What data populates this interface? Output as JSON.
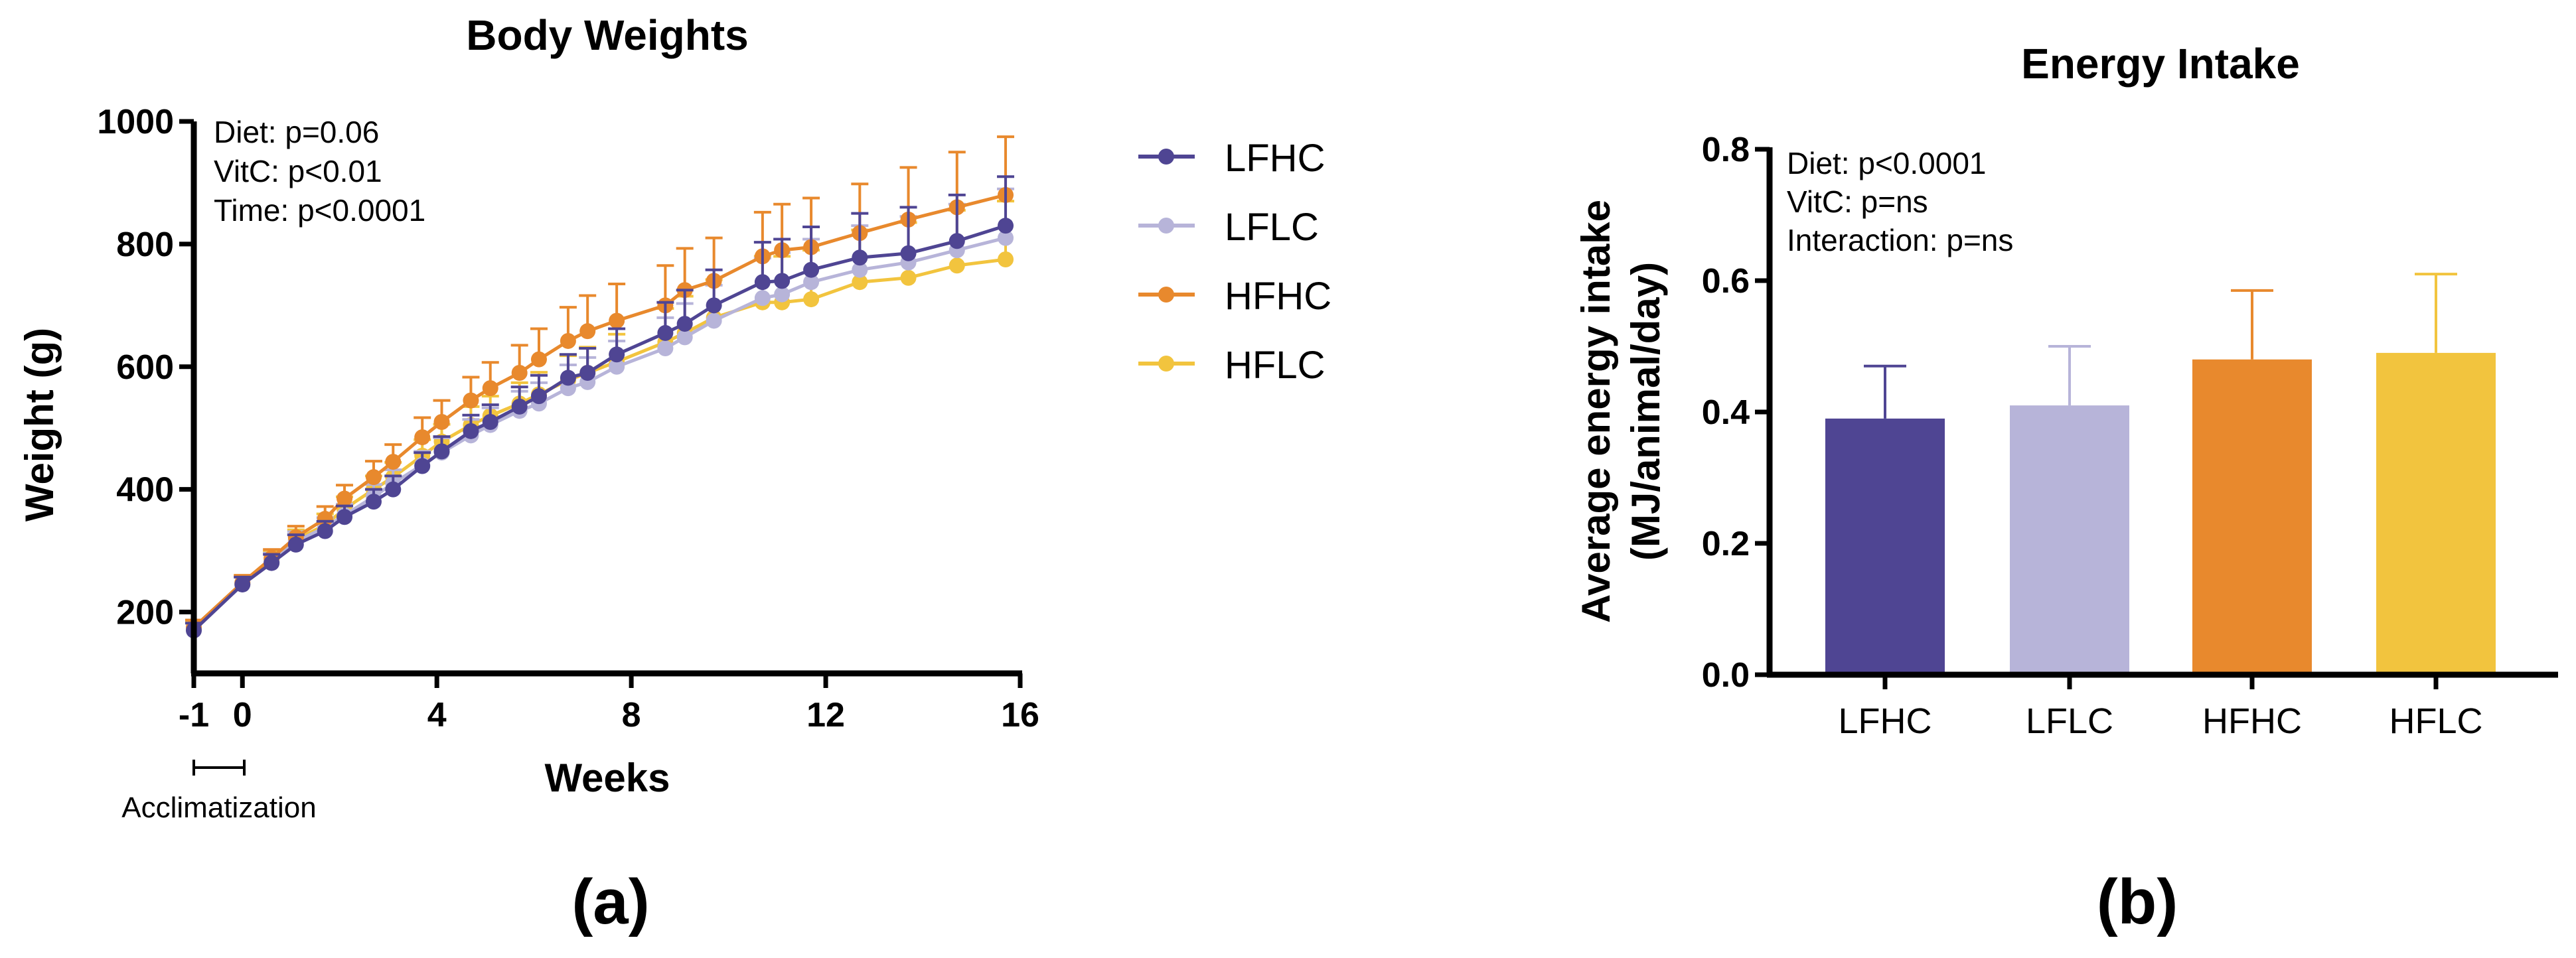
{
  "panel_a": {
    "label": "(a)",
    "acclimatization_label": "Acclimatization"
  },
  "panel_b": {
    "label": "(b)"
  },
  "colors": {
    "LFHC": "#4f4593",
    "LFLC": "#b7b4d9",
    "HFHC": "#e8892d",
    "HFLC": "#f2c43e"
  },
  "chart_data": [
    {
      "type": "line",
      "title": "Body Weights",
      "xlabel": "Weeks",
      "ylabel": "Weight (g)",
      "xlim": [
        -1,
        16
      ],
      "ylim": [
        100,
        1000
      ],
      "xticks": [
        -1,
        0,
        4,
        8,
        12,
        16
      ],
      "xtick_labels": [
        "-1",
        "0",
        "4",
        "8",
        "12",
        "16"
      ],
      "yticks": [
        200,
        400,
        600,
        800,
        1000
      ],
      "ytick_labels": [
        "200",
        "400",
        "600",
        "800",
        "1000"
      ],
      "annotations": [
        "Diet: p=0.06",
        "VitC: p<0.01",
        "Time: p<0.0001"
      ],
      "legend": [
        "LFHC",
        "LFLC",
        "HFHC",
        "HFLC"
      ],
      "legend_position": "right",
      "series": [
        {
          "name": "LFHC",
          "x": [
            -1,
            0,
            0.6,
            1.1,
            1.7,
            2.1,
            2.7,
            3.1,
            3.7,
            4.1,
            4.7,
            5.1,
            5.7,
            6.1,
            6.7,
            7.1,
            7.7,
            8.7,
            9.1,
            9.7,
            10.7,
            11.1,
            11.7,
            12.7,
            13.7,
            14.7,
            15.7
          ],
          "y": [
            170,
            245,
            280,
            310,
            332,
            355,
            380,
            400,
            438,
            462,
            495,
            510,
            535,
            552,
            582,
            590,
            620,
            655,
            670,
            700,
            738,
            740,
            758,
            778,
            785,
            805,
            830
          ],
          "error": [
            12,
            12,
            14,
            16,
            16,
            18,
            20,
            22,
            22,
            24,
            26,
            28,
            32,
            34,
            38,
            40,
            42,
            50,
            55,
            58,
            65,
            68,
            70,
            72,
            75,
            75,
            80
          ]
        },
        {
          "name": "LFLC",
          "x": [
            -1,
            0,
            0.6,
            1.1,
            1.7,
            2.1,
            2.7,
            3.1,
            3.7,
            4.1,
            4.7,
            5.1,
            5.7,
            6.1,
            6.7,
            7.1,
            7.7,
            8.7,
            9.1,
            9.7,
            10.7,
            11.1,
            11.7,
            12.7,
            13.7,
            14.7,
            15.7
          ],
          "y": [
            175,
            245,
            282,
            315,
            338,
            358,
            388,
            410,
            440,
            460,
            488,
            505,
            528,
            540,
            565,
            575,
            600,
            630,
            648,
            675,
            712,
            718,
            738,
            758,
            770,
            790,
            810
          ],
          "error": [
            12,
            12,
            14,
            16,
            16,
            18,
            20,
            22,
            22,
            24,
            26,
            28,
            32,
            34,
            38,
            40,
            42,
            50,
            55,
            58,
            65,
            68,
            70,
            72,
            75,
            75,
            80
          ]
        },
        {
          "name": "HFHC",
          "x": [
            -1,
            0,
            0.6,
            1.1,
            1.7,
            2.1,
            2.7,
            3.1,
            3.7,
            4.1,
            4.7,
            5.1,
            5.7,
            6.1,
            6.7,
            7.1,
            7.7,
            8.7,
            9.1,
            9.7,
            10.7,
            11.1,
            11.7,
            12.7,
            13.7,
            14.7,
            15.7
          ],
          "y": [
            175,
            248,
            288,
            322,
            352,
            385,
            420,
            445,
            485,
            510,
            545,
            565,
            590,
            612,
            642,
            658,
            675,
            700,
            725,
            740,
            780,
            790,
            795,
            818,
            840,
            860,
            880
          ],
          "error": [
            12,
            12,
            14,
            18,
            20,
            22,
            26,
            28,
            32,
            35,
            38,
            42,
            45,
            50,
            55,
            58,
            60,
            65,
            68,
            70,
            72,
            75,
            80,
            80,
            85,
            90,
            95
          ]
        },
        {
          "name": "HFLC",
          "x": [
            -1,
            0,
            0.6,
            1.1,
            1.7,
            2.1,
            2.7,
            3.1,
            3.7,
            4.1,
            4.7,
            5.1,
            5.7,
            6.1,
            6.7,
            7.1,
            7.7,
            8.7,
            9.1,
            9.7,
            10.7,
            11.1,
            11.7,
            12.7,
            13.7,
            14.7,
            15.7
          ],
          "y": [
            172,
            246,
            285,
            318,
            342,
            368,
            400,
            420,
            455,
            478,
            505,
            520,
            540,
            555,
            578,
            590,
            608,
            640,
            655,
            680,
            705,
            705,
            710,
            738,
            745,
            765,
            775
          ],
          "error": [
            12,
            12,
            14,
            16,
            18,
            20,
            22,
            24,
            26,
            28,
            30,
            32,
            34,
            36,
            40,
            42,
            45,
            55,
            60,
            62,
            75,
            75,
            80,
            85,
            90,
            90,
            95
          ]
        }
      ]
    },
    {
      "type": "bar",
      "title": "Energy Intake",
      "xlabel": "",
      "ylabel": "Average energy intake",
      "ylabel2": "(MJ/animal/day)",
      "ylim": [
        0,
        0.8
      ],
      "yticks": [
        0,
        0.2,
        0.4,
        0.6,
        0.8
      ],
      "ytick_labels": [
        "0.0",
        "0.2",
        "0.4",
        "0.6",
        "0.8"
      ],
      "annotations": [
        "Diet: p<0.0001",
        "VitC: p=ns",
        "Interaction: p=ns"
      ],
      "categories": [
        "LFHC",
        "LFLC",
        "HFHC",
        "HFLC"
      ],
      "values": [
        0.39,
        0.41,
        0.48,
        0.49
      ],
      "error": [
        0.08,
        0.09,
        0.105,
        0.12
      ]
    }
  ]
}
